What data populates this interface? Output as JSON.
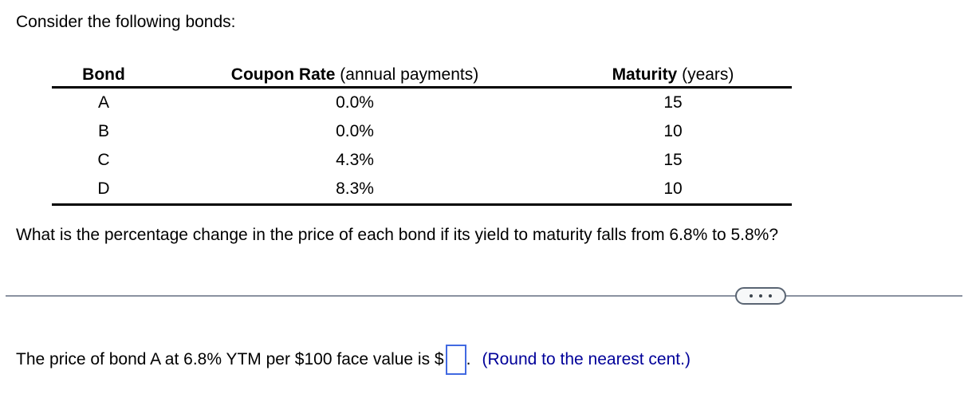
{
  "intro": "Consider the following bonds:",
  "table": {
    "headers": [
      {
        "title": "Bond",
        "note": ""
      },
      {
        "title": "Coupon Rate",
        "note": " (annual payments)"
      },
      {
        "title": "Maturity",
        "note": " (years)"
      }
    ],
    "rows": [
      {
        "bond": "A",
        "coupon_rate": "0.0%",
        "maturity": "15"
      },
      {
        "bond": "B",
        "coupon_rate": "0.0%",
        "maturity": "10"
      },
      {
        "bond": "C",
        "coupon_rate": "4.3%",
        "maturity": "15"
      },
      {
        "bond": "D",
        "coupon_rate": "8.3%",
        "maturity": "10"
      }
    ]
  },
  "question": "What is the percentage change in the price of each bond if its yield to maturity falls from 6.8% to 5.8%?",
  "divider": {
    "ellipsis_icon": "ellipsis-three-dots"
  },
  "answer": {
    "prefix": "The price of bond A at 6.8% YTM per $100 face value is $",
    "value": "",
    "period": ".",
    "hint": "(Round to the nearest cent.)"
  },
  "colors": {
    "hint_text": "#000099",
    "input_border": "#4169e1",
    "divider_line": "#8a92a0",
    "pill_border": "#5a6573",
    "pill_bg": "#f7f8f9",
    "pill_dots": "#3d454e"
  }
}
